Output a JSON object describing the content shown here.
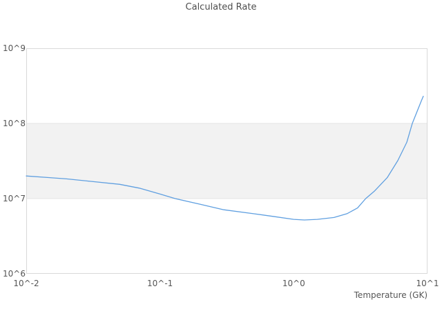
{
  "chart_data": {
    "type": "line",
    "title": "Calculated Rate",
    "xlabel": "Temperature (GK)",
    "ylabel": "",
    "x_scale": "log",
    "y_scale": "log",
    "xlim": [
      0.01,
      10
    ],
    "ylim": [
      1000000,
      1000000000
    ],
    "x_tick_values": [
      0.01,
      0.1,
      1,
      10
    ],
    "x_tick_labels": [
      "10^-2",
      "10^-1",
      "10^0",
      "10^1"
    ],
    "y_tick_values": [
      1000000,
      10000000,
      100000000,
      1000000000
    ],
    "y_tick_labels": [
      "10^6",
      "10^7",
      "10^8",
      "10^9"
    ],
    "grid": false,
    "legend": "none",
    "shaded_band": {
      "y_min": 10000000,
      "y_max": 100000000
    },
    "series": [
      {
        "name": "Calculated Rate",
        "x": [
          0.01,
          0.015,
          0.02,
          0.03,
          0.05,
          0.07,
          0.1,
          0.13,
          0.2,
          0.3,
          0.5,
          0.7,
          1.0,
          1.2,
          1.5,
          2.0,
          2.5,
          3.0,
          3.45,
          4.0,
          5.0,
          6.0,
          7.0,
          7.7,
          8.5,
          9.0,
          9.3
        ],
        "y": [
          20000000,
          19000000,
          18300000,
          17000000,
          15500000,
          13800000,
          11500000,
          10000000,
          8400000,
          7100000,
          6300000,
          5800000,
          5300000,
          5200000,
          5300000,
          5600000,
          6300000,
          7500000,
          10000000,
          12500000,
          19000000,
          32000000,
          56000000,
          100000000,
          155000000,
          200000000,
          230000000
        ]
      }
    ],
    "colors": {
      "line": "#5f9fe0",
      "band_fill": "#f2f2f2",
      "band_edge": "#e4e4e4",
      "axis_border": "#d9d9d9",
      "tick_text": "#555555",
      "title_text": "#4d4d4d"
    }
  }
}
